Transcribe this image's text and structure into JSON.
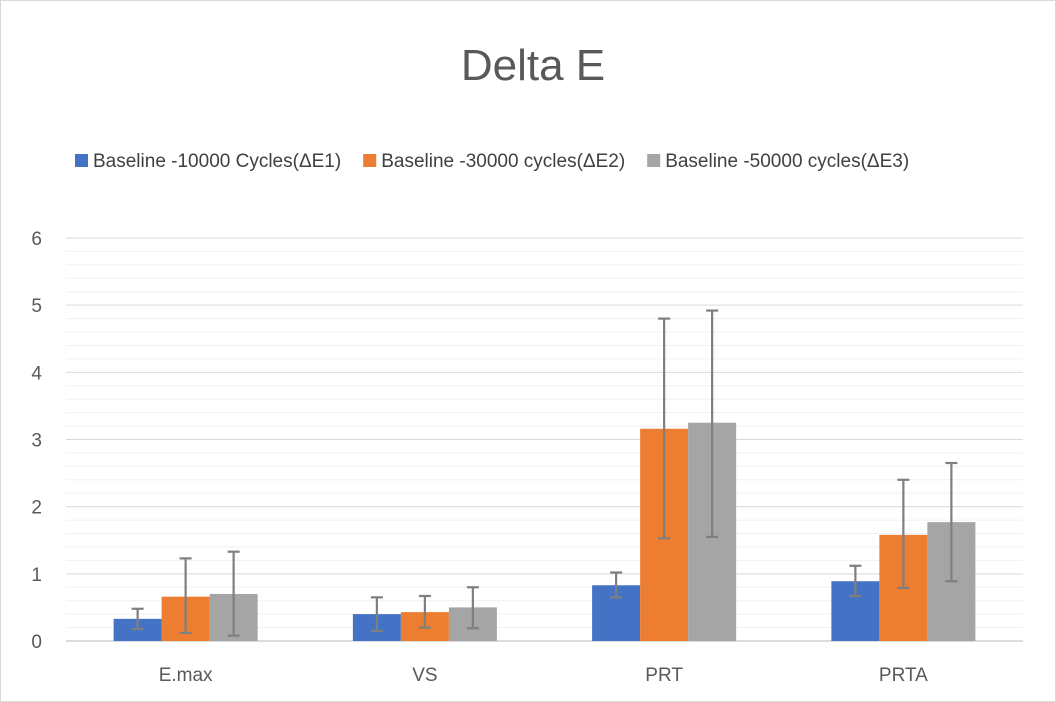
{
  "chart_data": {
    "type": "bar",
    "title": "Delta E",
    "categories": [
      "E.max",
      "VS",
      "PRT",
      "PRTA"
    ],
    "series": [
      {
        "name": "Baseline -10000 Cycles(ΔE1)",
        "color": "#4472c4",
        "values": [
          0.33,
          0.4,
          0.83,
          0.89
        ],
        "error_low": [
          0.18,
          0.15,
          0.65,
          0.67
        ],
        "error_high": [
          0.48,
          0.65,
          1.02,
          1.12
        ]
      },
      {
        "name": "Baseline -30000 cycles(ΔE2)",
        "color": "#ed7d31",
        "values": [
          0.66,
          0.43,
          3.16,
          1.58
        ],
        "error_low": [
          0.12,
          0.2,
          1.53,
          0.79
        ],
        "error_high": [
          1.23,
          0.67,
          4.8,
          2.4
        ]
      },
      {
        "name": "Baseline -50000 cycles(ΔE3)",
        "color": "#a5a5a5",
        "values": [
          0.7,
          0.5,
          3.25,
          1.77
        ],
        "error_low": [
          0.08,
          0.19,
          1.55,
          0.89
        ],
        "error_high": [
          1.33,
          0.8,
          4.92,
          2.65
        ]
      }
    ],
    "ylim": [
      0,
      6
    ],
    "yticks": [
      0,
      1,
      2,
      3,
      4,
      5,
      6
    ],
    "minor_gridlines": true,
    "legend_position": "top",
    "xlabel": "",
    "ylabel": ""
  }
}
